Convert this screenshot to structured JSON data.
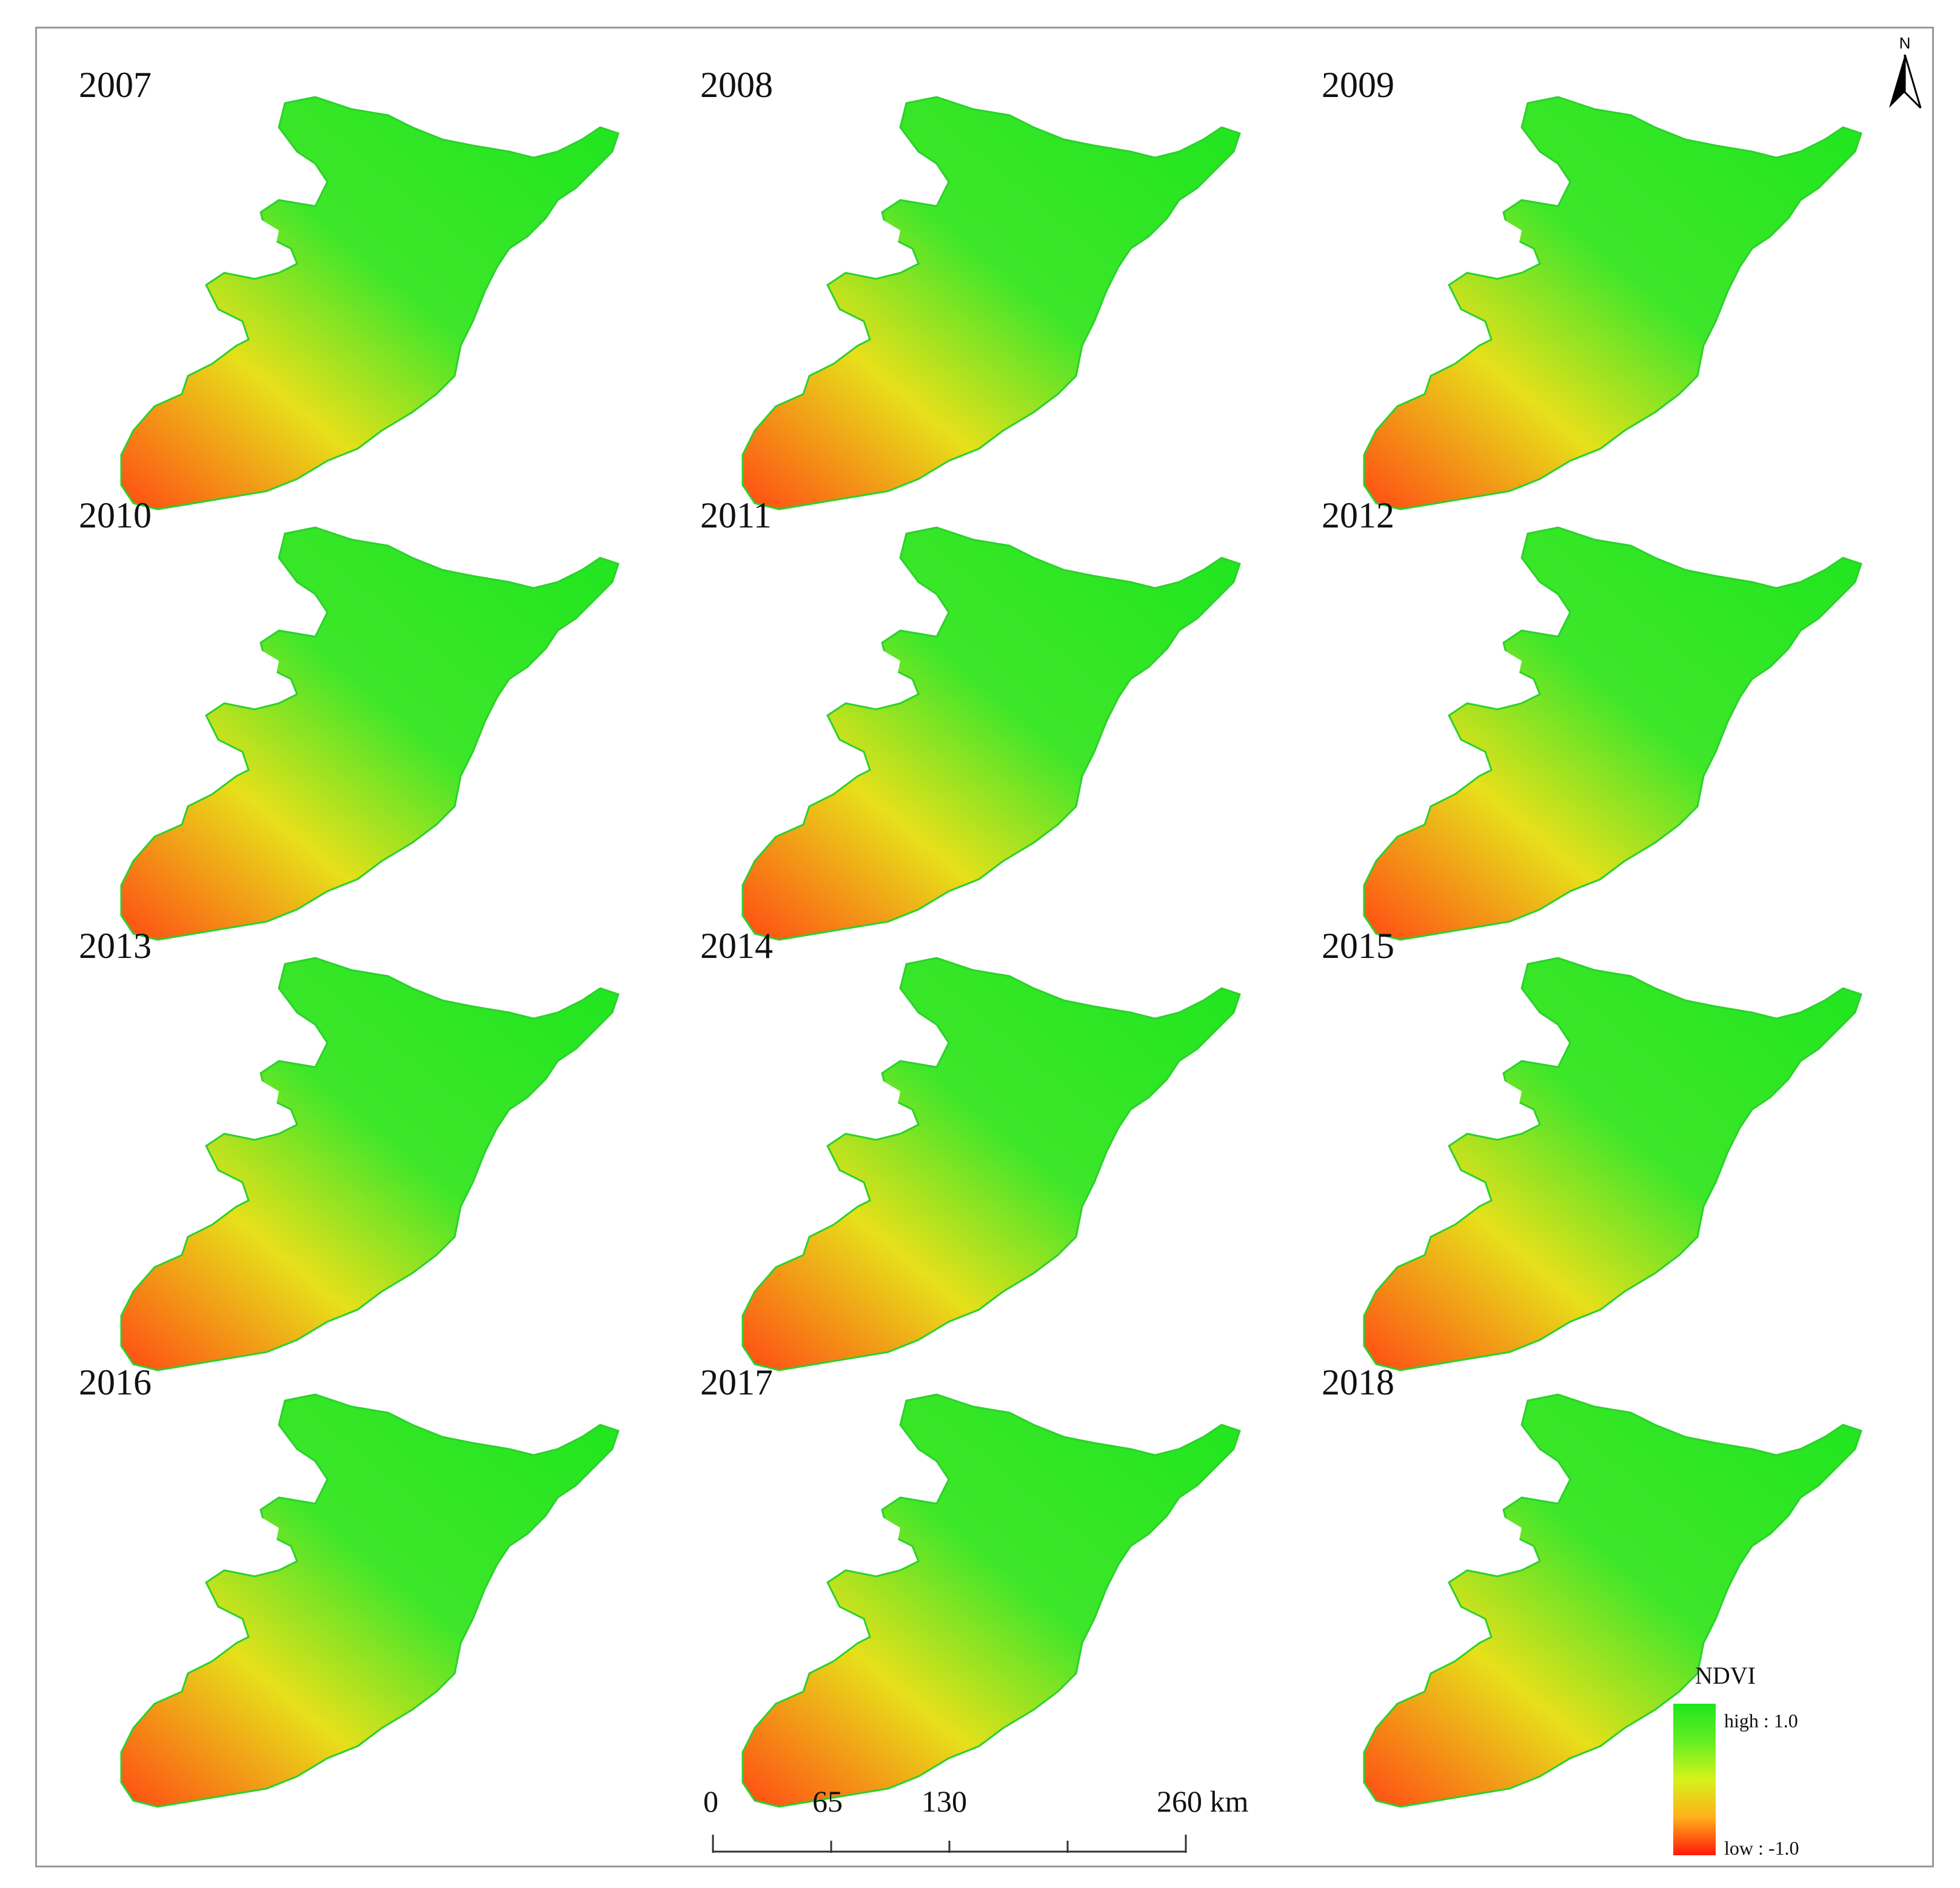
{
  "panels": [
    {
      "year": "2007"
    },
    {
      "year": "2008"
    },
    {
      "year": "2009"
    },
    {
      "year": "2010"
    },
    {
      "year": "2011"
    },
    {
      "year": "2012"
    },
    {
      "year": "2013"
    },
    {
      "year": "2014"
    },
    {
      "year": "2015"
    },
    {
      "year": "2016"
    },
    {
      "year": "2017"
    },
    {
      "year": "2018"
    }
  ],
  "north_arrow": {
    "label": "N"
  },
  "scale_bar": {
    "labels": [
      "0",
      "65",
      "130",
      "260 km"
    ]
  },
  "legend": {
    "title": "NDVI",
    "high_label": "high : 1.0",
    "low_label": "low : -1.0",
    "colors": {
      "high": "#1ee61e",
      "mid": "#d6f21a",
      "low": "#ff1a0a"
    }
  }
}
